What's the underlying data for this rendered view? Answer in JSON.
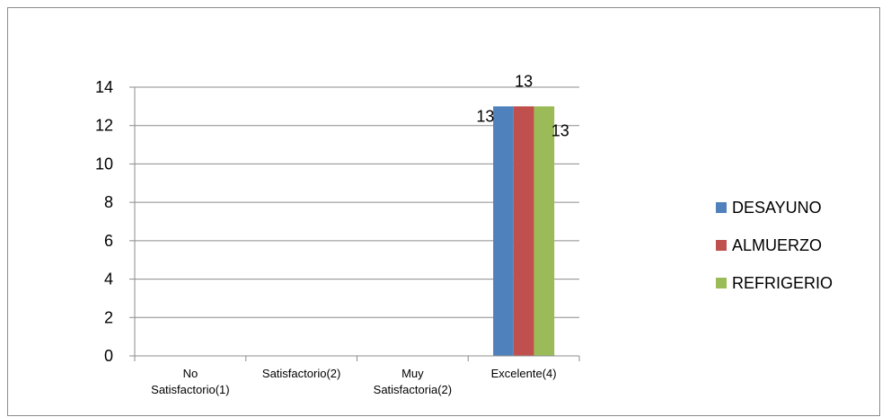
{
  "chart_data": {
    "type": "bar",
    "categories": [
      [
        "No",
        "Satisfactorio(1)"
      ],
      [
        "Satisfactorio(2)"
      ],
      [
        "Muy",
        "Satisfactoria(2)"
      ],
      [
        "Excelente(4)"
      ]
    ],
    "series": [
      {
        "name": "DESAYUNO",
        "color": "#4f81bd",
        "values": [
          0,
          0,
          0,
          13
        ]
      },
      {
        "name": "ALMUERZO",
        "color": "#c0504d",
        "values": [
          0,
          0,
          0,
          13
        ]
      },
      {
        "name": "REFRIGERIO",
        "color": "#9bbb59",
        "values": [
          0,
          0,
          0,
          13
        ]
      }
    ],
    "data_labels": [
      "13",
      "13",
      "13"
    ],
    "yticks": [
      0,
      2,
      4,
      6,
      8,
      10,
      12,
      14
    ],
    "ylim": [
      0,
      14
    ],
    "grid": true,
    "legend": "right"
  }
}
